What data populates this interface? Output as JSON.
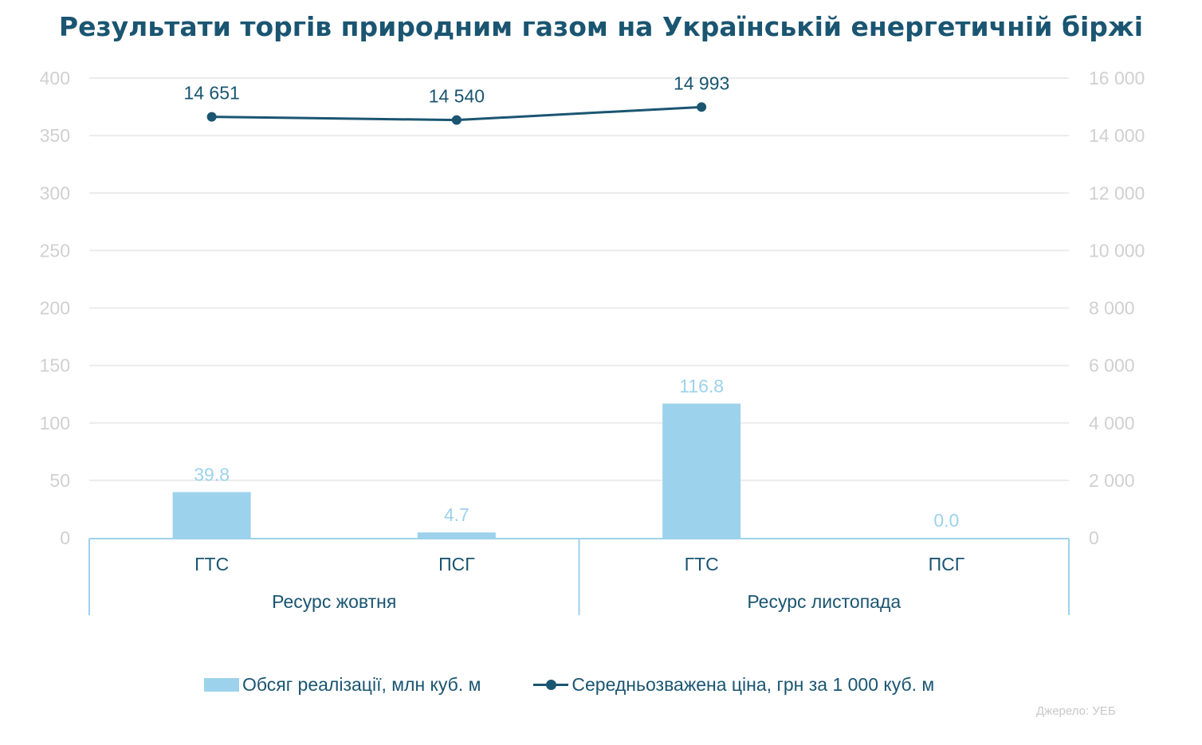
{
  "title": "Результати торгів природним газом на Українській енергетичній біржі",
  "colors": {
    "bar": "#9dd2ec",
    "line": "#1a5571",
    "axis_text": "#d0d0d0",
    "grid": "#ebebeb",
    "axis_line": "#9dd2ec",
    "title": "#1a5571"
  },
  "chart_data": {
    "type": "bar",
    "categories": [
      "ГТС",
      "ПСГ",
      "ГТС",
      "ПСГ"
    ],
    "groups": [
      {
        "label": "Ресурс жовтня",
        "span": 2
      },
      {
        "label": "Ресурс листопада",
        "span": 2
      }
    ],
    "series": [
      {
        "name": "Обсяг реалізації, млн куб. м",
        "type": "bar",
        "axis": "left",
        "values": [
          39.8,
          4.7,
          116.8,
          0.0
        ],
        "value_labels": [
          "39.8",
          "4.7",
          "116.8",
          "0.0"
        ]
      },
      {
        "name": "Середньозважена ціна, грн за 1 000 куб. м",
        "type": "line",
        "axis": "right",
        "values": [
          14651,
          14540,
          14993,
          null
        ],
        "value_labels": [
          "14 651",
          "14 540",
          "14 993",
          ""
        ]
      }
    ],
    "ylim": [
      0,
      400
    ],
    "y_ticks": [
      "0",
      "50",
      "100",
      "150",
      "200",
      "250",
      "300",
      "350",
      "400"
    ],
    "y2lim": [
      0,
      16000
    ],
    "y2_ticks": [
      "0",
      "2 000",
      "4 000",
      "6 000",
      "8 000",
      "10 000",
      "12 000",
      "14 000",
      "16 000"
    ],
    "grid": true,
    "legend": "bottom"
  },
  "source": "Джерело: УЕБ"
}
